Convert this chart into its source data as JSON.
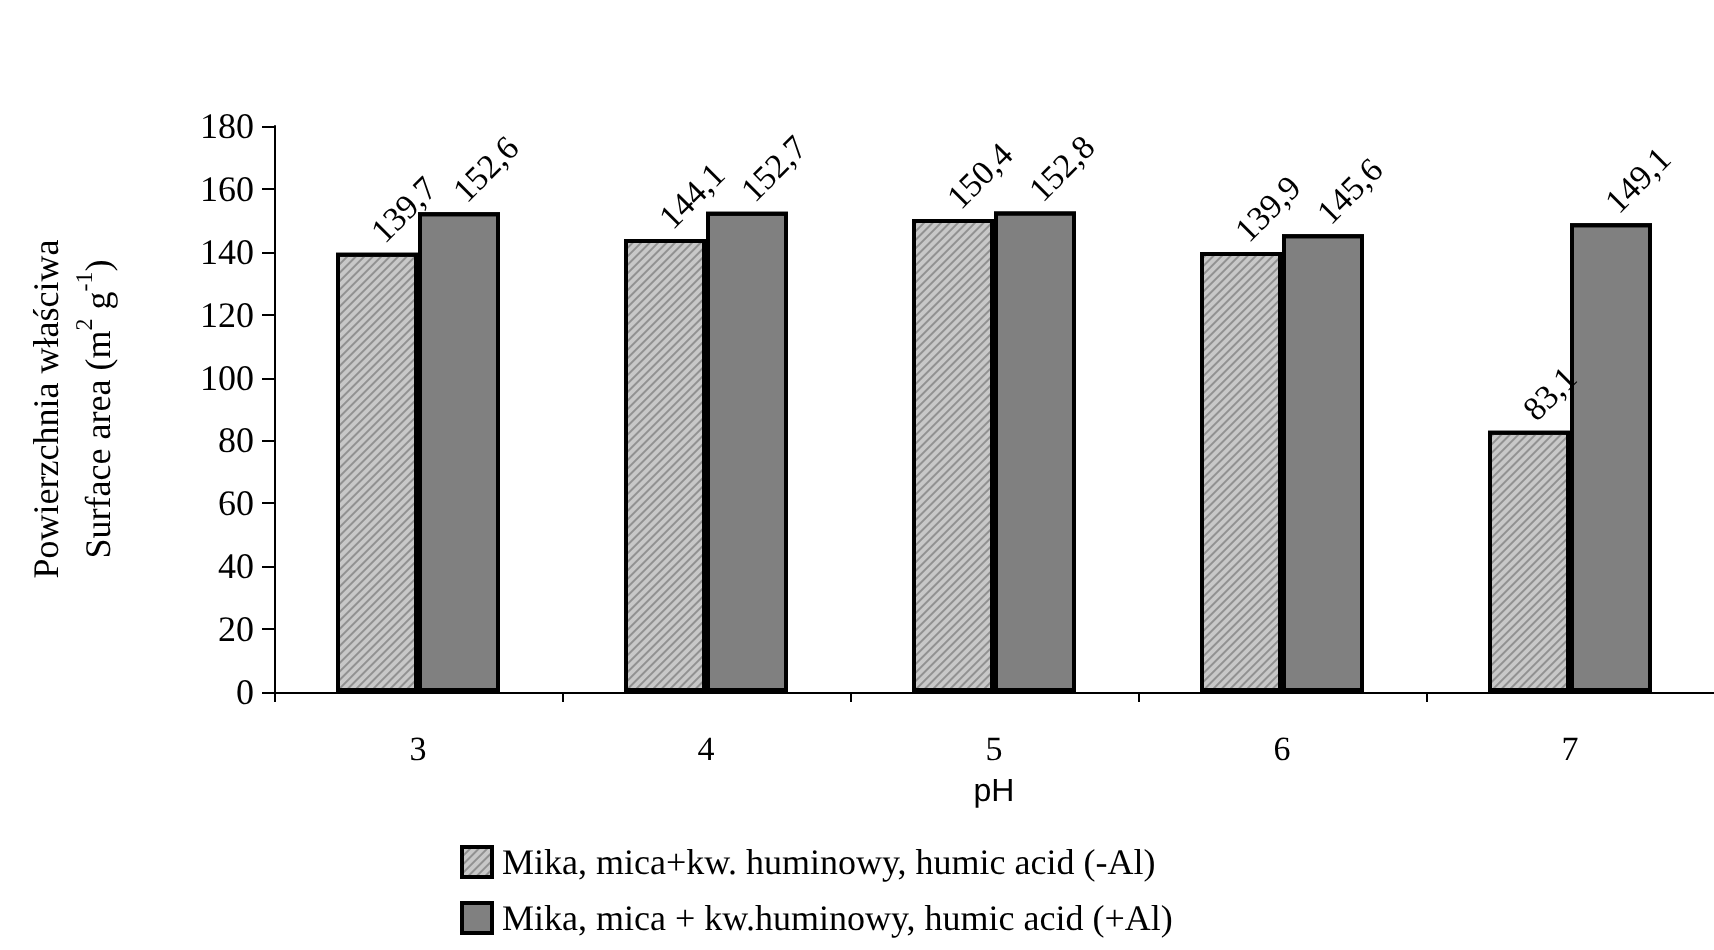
{
  "chart_data": {
    "type": "bar",
    "xlabel": "pH",
    "ylabel": "Powierzchnia właściwa\nSurface area (m$^{2}$ g$^{-1}$)",
    "categories": [
      "3",
      "4",
      "5",
      "6",
      "7"
    ],
    "series": [
      {
        "name": "Mika, mica+kw. huminowy, humic acid (-Al)",
        "color": "#c8c8c8",
        "values": [
          139.7,
          144.1,
          150.4,
          139.9,
          83.1
        ],
        "value_labels": [
          "139,7",
          "144,1",
          "150,4",
          "139,9",
          "83,1"
        ]
      },
      {
        "name": "Mika, mica + kw.huminowy, humic acid (+Al)",
        "color": "#808080",
        "values": [
          152.6,
          152.7,
          152.8,
          145.6,
          149.1
        ],
        "value_labels": [
          "152,6",
          "152,7",
          "152,8",
          "145,6",
          "149,1"
        ]
      }
    ],
    "ylim": [
      0,
      180
    ],
    "yticks": [
      0,
      20,
      40,
      60,
      80,
      100,
      120,
      140,
      160,
      180
    ],
    "grid": false,
    "legend": "bottom"
  }
}
